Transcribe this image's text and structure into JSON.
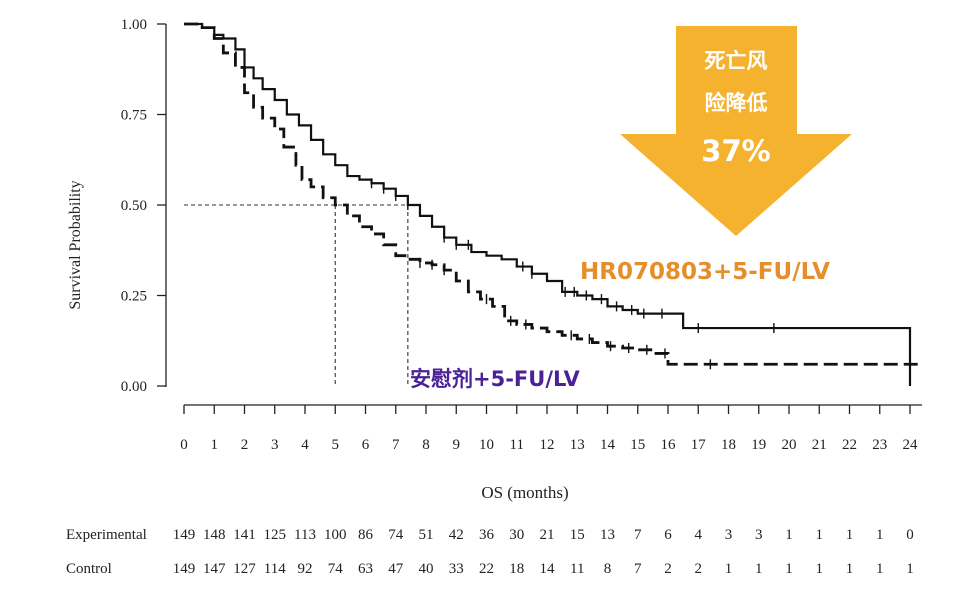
{
  "chart_data": {
    "type": "line",
    "title": "",
    "xlabel": "OS (months)",
    "ylabel": "Survival Probability",
    "xlim": [
      0,
      24
    ],
    "ylim": [
      0,
      1
    ],
    "x_ticks": [
      0,
      1,
      2,
      3,
      4,
      5,
      6,
      7,
      8,
      9,
      10,
      11,
      12,
      13,
      14,
      15,
      16,
      17,
      18,
      19,
      20,
      21,
      22,
      23,
      24
    ],
    "y_ticks": [
      "0.00",
      "0.25",
      "0.50",
      "0.75",
      "1.00"
    ],
    "y_tick_values": [
      0,
      0.25,
      0.5,
      0.75,
      1.0
    ],
    "grid": false,
    "series": [
      {
        "name": "Experimental",
        "line_style": "solid",
        "x": [
          0,
          0.6,
          1.0,
          1.3,
          1.7,
          2.0,
          2.3,
          2.6,
          3.0,
          3.4,
          3.8,
          4.2,
          4.6,
          5.0,
          5.4,
          5.8,
          6.2,
          6.6,
          7.0,
          7.4,
          7.8,
          8.2,
          8.6,
          9.0,
          9.5,
          10.0,
          10.5,
          11.0,
          11.5,
          12.0,
          12.5,
          13.0,
          13.5,
          14.0,
          14.5,
          15.0,
          15.5,
          16.0,
          16.5,
          17.0,
          18.0,
          19.0,
          20.0,
          21.0,
          22.0,
          23.0,
          23.95,
          24.0
        ],
        "y": [
          1.0,
          0.99,
          0.97,
          0.96,
          0.93,
          0.88,
          0.85,
          0.82,
          0.79,
          0.75,
          0.72,
          0.68,
          0.64,
          0.61,
          0.58,
          0.57,
          0.56,
          0.545,
          0.525,
          0.5,
          0.47,
          0.44,
          0.41,
          0.39,
          0.37,
          0.36,
          0.35,
          0.33,
          0.31,
          0.29,
          0.26,
          0.25,
          0.24,
          0.22,
          0.21,
          0.2,
          0.2,
          0.2,
          0.16,
          0.16,
          0.16,
          0.16,
          0.16,
          0.16,
          0.16,
          0.16,
          0.16,
          0.0
        ],
        "censor_x": [
          6.2,
          6.6,
          7.0,
          7.4,
          8.6,
          9.0,
          9.4,
          11.2,
          11.5,
          12.6,
          12.9,
          13.3,
          13.8,
          14.3,
          14.8,
          15.2,
          15.8,
          17.0,
          19.5
        ]
      },
      {
        "name": "Control",
        "line_style": "dashed",
        "x": [
          0,
          0.6,
          1.0,
          1.3,
          1.7,
          2.0,
          2.3,
          2.6,
          3.0,
          3.3,
          3.7,
          3.9,
          4.2,
          4.6,
          5.0,
          5.4,
          5.8,
          6.2,
          6.6,
          7.0,
          7.4,
          7.8,
          8.2,
          8.6,
          9.0,
          9.4,
          9.8,
          10.2,
          10.6,
          11.0,
          11.5,
          12.0,
          12.5,
          13.0,
          13.5,
          14.0,
          14.5,
          15.0,
          15.5,
          16.0,
          16.5,
          17.0,
          18.0,
          19.0,
          20.0,
          21.0,
          22.0,
          23.0,
          24.0,
          24.45
        ],
        "y": [
          1.0,
          0.99,
          0.96,
          0.92,
          0.88,
          0.81,
          0.77,
          0.74,
          0.71,
          0.66,
          0.61,
          0.57,
          0.55,
          0.52,
          0.5,
          0.47,
          0.44,
          0.42,
          0.39,
          0.36,
          0.35,
          0.34,
          0.335,
          0.32,
          0.29,
          0.26,
          0.24,
          0.22,
          0.18,
          0.17,
          0.16,
          0.15,
          0.14,
          0.13,
          0.12,
          0.11,
          0.105,
          0.1,
          0.09,
          0.06,
          0.06,
          0.06,
          0.06,
          0.06,
          0.06,
          0.06,
          0.06,
          0.06,
          0.06,
          0.06
        ],
        "censor_x": [
          7.8,
          8.2,
          8.6,
          10.0,
          10.8,
          11.3,
          12.8,
          13.4,
          14.1,
          14.7,
          15.3,
          15.9,
          17.4
        ]
      }
    ],
    "median_lines": [
      {
        "x": 5.0,
        "y": 0.5
      },
      {
        "x": 7.4,
        "y": 0.5
      }
    ],
    "risk_table": {
      "rows": [
        {
          "label": "Experimental",
          "values": [
            "149",
            "148",
            "141",
            "125",
            "113",
            "100",
            "86",
            "74",
            "51",
            "42",
            "36",
            "30",
            "21",
            "15",
            "13",
            "7",
            "6",
            "4",
            "3",
            "3",
            "1",
            "1",
            "1",
            "1",
            "0"
          ]
        },
        {
          "label": "Control",
          "values": [
            "149",
            "147",
            "127",
            "114",
            "92",
            "74",
            "63",
            "47",
            "40",
            "33",
            "22",
            "18",
            "14",
            "11",
            "8",
            "7",
            "2",
            "2",
            "1",
            "1",
            "1",
            "1",
            "1",
            "1",
            "1"
          ]
        }
      ]
    },
    "annotations": {
      "experimental_label": "HR070803+5-FU/LV",
      "control_label": "安慰剂+5-FU/LV",
      "arrow_line1": "死亡风",
      "arrow_line2": "险降低",
      "arrow_value": "37%"
    },
    "colors": {
      "arrow": "#f5b22f",
      "experimental_label": "#e58e2a",
      "control_label": "#4b2296",
      "curves": "#111111"
    }
  }
}
